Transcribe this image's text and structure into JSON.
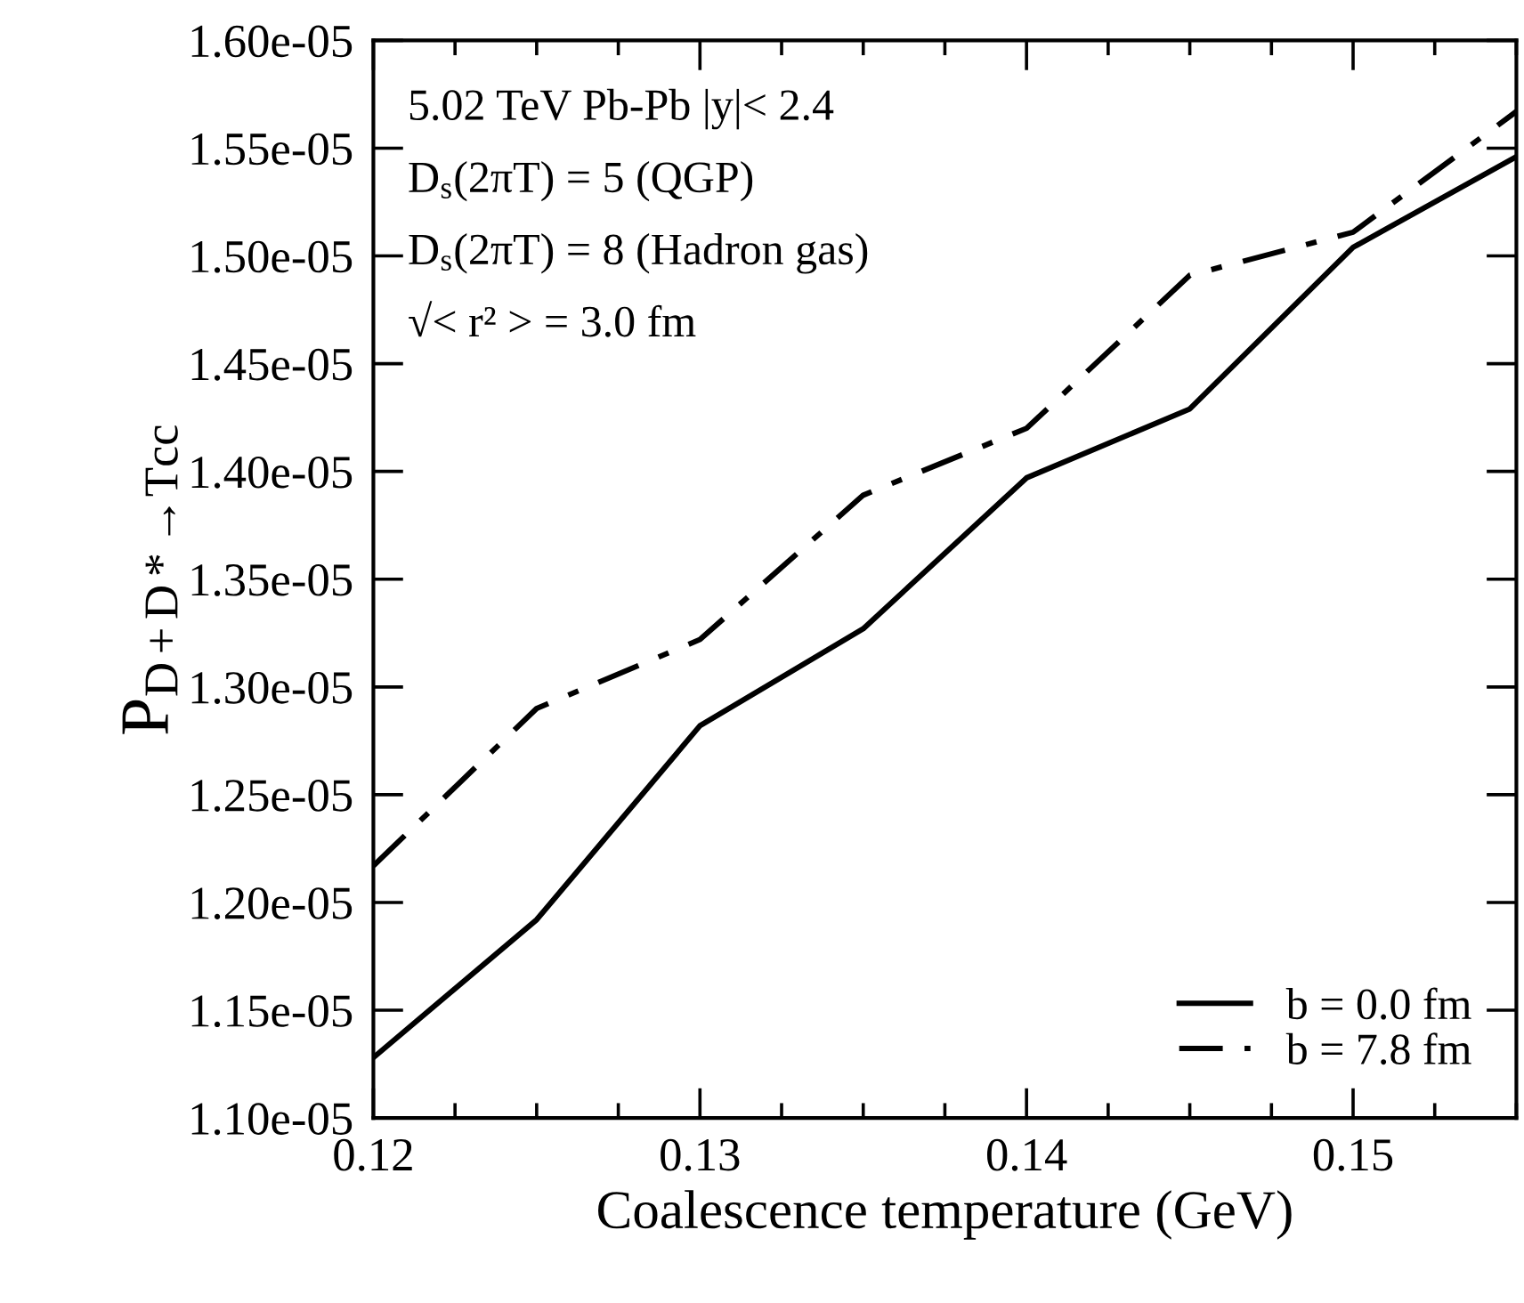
{
  "chart_data": {
    "type": "line",
    "xlabel": "Coalescence temperature (GeV)",
    "ylabel": "P$_{D+D*→Tcc}$",
    "x": [
      0.12,
      0.125,
      0.13,
      0.135,
      0.14,
      0.145,
      0.15,
      0.155
    ],
    "series": [
      {
        "name": "b = 0.0 fm",
        "color": "#000000",
        "line_style": "solid",
        "values": [
          1.128e-05,
          1.192e-05,
          1.282e-05,
          1.327e-05,
          1.397e-05,
          1.429e-05,
          1.504e-05,
          1.546e-05
        ]
      },
      {
        "name": "b = 7.8 fm",
        "color": "#000000",
        "line_style": "dashdot",
        "values": [
          1.217e-05,
          1.29e-05,
          1.322e-05,
          1.389e-05,
          1.42e-05,
          1.491e-05,
          1.511e-05,
          1.567e-05
        ]
      }
    ],
    "xlim": [
      0.12,
      0.155
    ],
    "xticks": [
      0.12,
      0.13,
      0.14,
      0.15
    ],
    "ylim": [
      1.1e-05,
      1.6e-05
    ],
    "yticks": [
      {
        "value": 1.1e-05,
        "label": "1.10e-05"
      },
      {
        "value": 1.15e-05,
        "label": "1.15e-05"
      },
      {
        "value": 1.2e-05,
        "label": "1.20e-05"
      },
      {
        "value": 1.25e-05,
        "label": "1.25e-05"
      },
      {
        "value": 1.3e-05,
        "label": "1.30e-05"
      },
      {
        "value": 1.35e-05,
        "label": "1.35e-05"
      },
      {
        "value": 1.4e-05,
        "label": "1.40e-05"
      },
      {
        "value": 1.45e-05,
        "label": "1.45e-05"
      },
      {
        "value": 1.5e-05,
        "label": "1.50e-05"
      },
      {
        "value": 1.55e-05,
        "label": "1.55e-05"
      },
      {
        "value": 1.6e-05,
        "label": "1.60e-05"
      }
    ],
    "annotations": [
      "5.02 TeV Pb-Pb |y|< 2.4",
      "D$_{s}$(2πT) = 5 (QGP)",
      "D$_{s}$(2πT) = 8 (Hadron gas)",
      "√< r² > = 3.0 fm"
    ],
    "legend": "lower right",
    "grid": false,
    "marker": "none"
  }
}
